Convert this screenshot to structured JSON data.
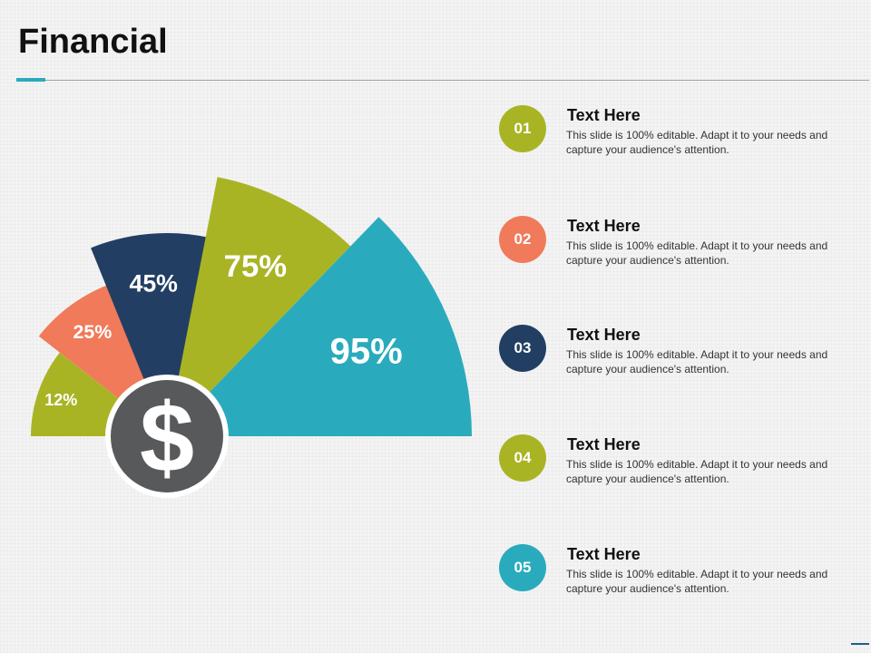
{
  "slide": {
    "title": "Financial"
  },
  "colors": {
    "olive": "#a9b425",
    "coral": "#f07a5a",
    "navy": "#223f63",
    "teal": "#2aabbd",
    "dollar_disc": "#58595b"
  },
  "chart_data": {
    "type": "pie",
    "center_icon": "dollar-icon",
    "center_text": "$",
    "segments": [
      {
        "label": "12%",
        "value": 12,
        "color": "#a9b425"
      },
      {
        "label": "25%",
        "value": 25,
        "color": "#f07a5a"
      },
      {
        "label": "45%",
        "value": 45,
        "color": "#223f63"
      },
      {
        "label": "75%",
        "value": 75,
        "color": "#a9b425"
      },
      {
        "label": "95%",
        "value": 95,
        "color": "#2aabbd"
      }
    ]
  },
  "items": [
    {
      "number": "01",
      "color": "#a9b425",
      "title": "Text Here",
      "description": "This slide is 100% editable. Adapt it to your needs and capture your audience's attention."
    },
    {
      "number": "02",
      "color": "#f07a5a",
      "title": "Text Here",
      "description": "This slide is 100% editable. Adapt it to your needs and capture your audience's attention."
    },
    {
      "number": "03",
      "color": "#223f63",
      "title": "Text Here",
      "description": "This slide is 100% editable. Adapt it to your needs and capture your audience's attention."
    },
    {
      "number": "04",
      "color": "#a9b425",
      "title": "Text Here",
      "description": "This slide is 100% editable. Adapt it to your needs and capture your audience's attention."
    },
    {
      "number": "05",
      "color": "#2aabbd",
      "title": "Text Here",
      "description": "This slide is 100% editable. Adapt it to your needs and capture your audience's attention."
    }
  ]
}
